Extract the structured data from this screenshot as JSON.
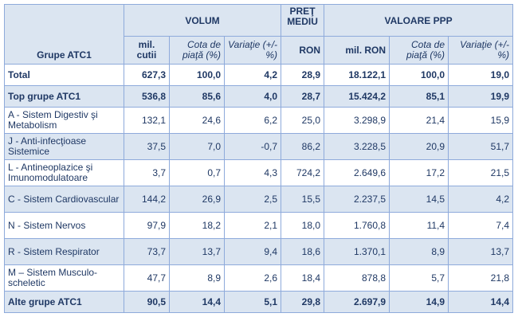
{
  "headers": {
    "group": "Grupe ATC1",
    "volum": "VOLUM",
    "pret": "PREŢ MEDIU",
    "valoare": "VALOARE PPP",
    "sub": {
      "vol_units": "mil. cutii",
      "vol_share": "Cota de piaţă (%)",
      "vol_var": "Variaţie (+/- %)",
      "pret_unit": "RON",
      "val_units": "mil. RON",
      "val_share": "Cota de piaţă (%)",
      "val_var": "Variaţie (+/- %)"
    }
  },
  "rows": [
    {
      "name": "Total",
      "vol": "627,3",
      "vshare": "100,0",
      "vvar": "4,2",
      "price": "28,9",
      "val": "18.122,1",
      "valshare": "100,0",
      "valvar": "19,0"
    },
    {
      "name": "Top grupe ATC1",
      "vol": "536,8",
      "vshare": "85,6",
      "vvar": "4,0",
      "price": "28,7",
      "val": "15.424,2",
      "valshare": "85,1",
      "valvar": "19,9"
    },
    {
      "name": "A - Sistem Digestiv şi Metabolism",
      "vol": "132,1",
      "vshare": "24,6",
      "vvar": "6,2",
      "price": "25,0",
      "val": "3.298,9",
      "valshare": "21,4",
      "valvar": "15,9"
    },
    {
      "name": "J - Anti-infecţioase Sistemice",
      "vol": "37,5",
      "vshare": "7,0",
      "vvar": "-0,7",
      "price": "86,2",
      "val": "3.228,5",
      "valshare": "20,9",
      "valvar": "51,7"
    },
    {
      "name": "L - Antineoplazice şi Imunomodulatoare",
      "vol": "3,7",
      "vshare": "0,7",
      "vvar": "4,3",
      "price": "724,2",
      "val": "2.649,6",
      "valshare": "17,2",
      "valvar": "21,5"
    },
    {
      "name": "C - Sistem Cardiovascular",
      "vol": "144,2",
      "vshare": "26,9",
      "vvar": "2,5",
      "price": "15,5",
      "val": "2.237,5",
      "valshare": "14,5",
      "valvar": "4,2"
    },
    {
      "name": "N - Sistem Nervos",
      "vol": "97,9",
      "vshare": "18,2",
      "vvar": "2,1",
      "price": "18,0",
      "val": "1.760,8",
      "valshare": "11,4",
      "valvar": "7,4"
    },
    {
      "name": "R - Sistem Respirator",
      "vol": "73,7",
      "vshare": "13,7",
      "vvar": "9,4",
      "price": "18,6",
      "val": "1.370,1",
      "valshare": "8,9",
      "valvar": "13,7"
    },
    {
      "name": "M – Sistem Musculo-scheletic",
      "vol": "47,7",
      "vshare": "8,9",
      "vvar": "2,6",
      "price": "18,4",
      "val": "878,8",
      "valshare": "5,7",
      "valvar": "21,8"
    },
    {
      "name": "Alte grupe ATC1",
      "vol": "90,5",
      "vshare": "14,4",
      "vvar": "5,1",
      "price": "29,8",
      "val": "2.697,9",
      "valshare": "14,9",
      "valvar": "14,4"
    }
  ]
}
